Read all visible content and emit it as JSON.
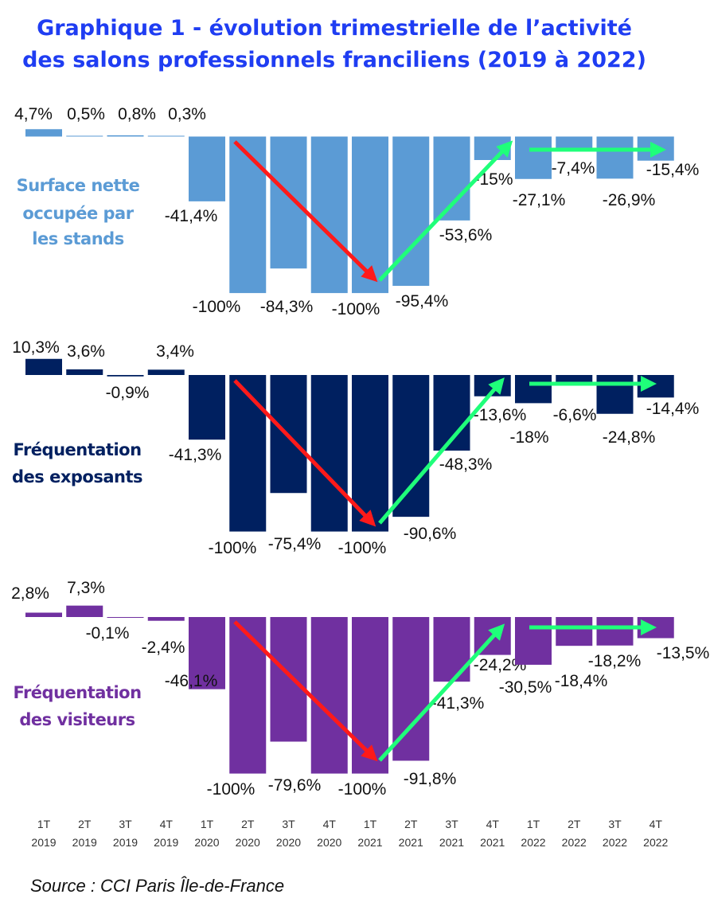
{
  "chart_data": {
    "type": "bar",
    "title": [
      "Graphique 1 - évolution trimestrielle de l’activité",
      "des salons professionnels franciliens (2019 à 2022)"
    ],
    "categories": [
      [
        "1T",
        "2019"
      ],
      [
        "2T",
        "2019"
      ],
      [
        "3T",
        "2019"
      ],
      [
        "4T",
        "2019"
      ],
      [
        "1T",
        "2020"
      ],
      [
        "2T",
        "2020"
      ],
      [
        "3T",
        "2020"
      ],
      [
        "4T",
        "2020"
      ],
      [
        "1T",
        "2021"
      ],
      [
        "2T",
        "2021"
      ],
      [
        "3T",
        "2021"
      ],
      [
        "4T",
        "2021"
      ],
      [
        "1T",
        "2022"
      ],
      [
        "2T",
        "2022"
      ],
      [
        "3T",
        "2022"
      ],
      [
        "4T",
        "2022"
      ]
    ],
    "ylim": [
      -100,
      10.3
    ],
    "grid": false,
    "series": [
      {
        "name": [
          "Surface nette",
          "occupée par",
          "les stands"
        ],
        "color": "#5b9bd5",
        "values": [
          4.7,
          0.5,
          0.8,
          0.3,
          -41.4,
          -100,
          -84.3,
          -100,
          -100,
          -95.4,
          -53.6,
          -15,
          -27.1,
          -7.4,
          -26.9,
          -15.4
        ],
        "labels": [
          "4,7%",
          "0,5%",
          "0,8%",
          "0,3%",
          "-41,4%",
          "-100%",
          "-84,3%",
          "",
          "-100%",
          "-95,4%",
          "-53,6%",
          "-15%",
          "-27,1%",
          "-7,4%",
          "-26,9%",
          "-15,4%"
        ]
      },
      {
        "name": [
          "Fréquentation",
          "des exposants"
        ],
        "color": "#002060",
        "values": [
          10.3,
          3.6,
          -0.9,
          3.4,
          -41.3,
          -100,
          -75.4,
          -100,
          -100,
          -90.6,
          -48.3,
          -13.6,
          -18,
          -6.6,
          -24.8,
          -14.4
        ],
        "labels": [
          "10,3%",
          "3,6%",
          "-0,9%",
          "3,4%",
          "-41,3%",
          "-100%",
          "-75,4%",
          "",
          "-100%",
          "-90,6%",
          "-48,3%",
          "-13,6%",
          "-18%",
          "-6,6%",
          "-24,8%",
          "-14,4%"
        ]
      },
      {
        "name": [
          "Fréquentation",
          "des visiteurs"
        ],
        "color": "#7030a0",
        "values": [
          2.8,
          7.3,
          -0.1,
          -2.4,
          -46.1,
          -100,
          -79.6,
          -100,
          -100,
          -91.8,
          -41.3,
          -24.2,
          -30.5,
          -18.4,
          -18.2,
          -13.5
        ],
        "labels": [
          "2,8%",
          "7,3%",
          "-0,1%",
          "-2,4%",
          "-46,1%",
          "-100%",
          "-79,6%",
          "",
          "-100%",
          "-91,8%",
          "-41,3%",
          "-24,2%",
          "-30,5%",
          "-18,4%",
          "-18,2%",
          "-13,5%"
        ]
      }
    ],
    "annotations": {
      "decline_arrow_color": "#ff1a1a",
      "recovery_arrow_color": "#1fff7a"
    },
    "source": "Source : CCI Paris Île-de-France"
  }
}
